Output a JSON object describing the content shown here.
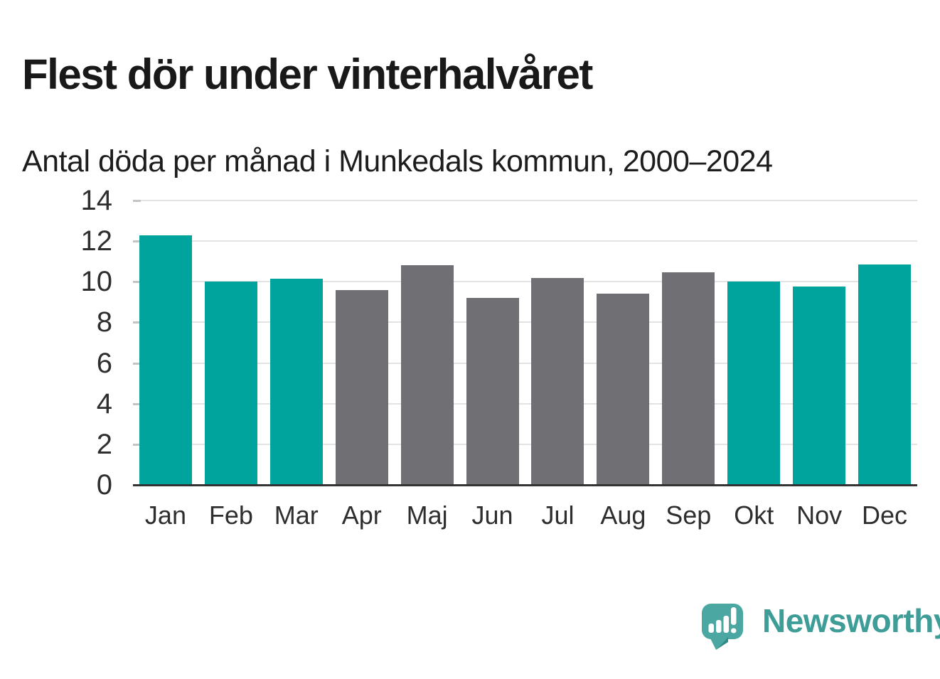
{
  "header": {
    "title": "Flest dör under vinterhalvåret",
    "subtitle": "Antal döda per månad i Munkedals kommun, 2000–2024"
  },
  "chart_data": {
    "type": "bar",
    "title": "Flest dör under vinterhalvåret",
    "subtitle": "Antal döda per månad i Munkedals kommun, 2000–2024",
    "categories": [
      "Jan",
      "Feb",
      "Mar",
      "Apr",
      "Maj",
      "Jun",
      "Jul",
      "Aug",
      "Sep",
      "Okt",
      "Nov",
      "Dec"
    ],
    "values": [
      12.3,
      10.0,
      10.15,
      9.6,
      10.8,
      9.2,
      10.2,
      9.4,
      10.45,
      10.0,
      9.75,
      10.85
    ],
    "bar_colors": [
      "#00a49c",
      "#00a49c",
      "#00a49c",
      "#6f6f74",
      "#6f6f74",
      "#6f6f74",
      "#6f6f74",
      "#6f6f74",
      "#6f6f74",
      "#00a49c",
      "#00a49c",
      "#00a49c"
    ],
    "xlabel": "",
    "ylabel": "",
    "ylim": [
      0,
      14
    ],
    "yticks": [
      0,
      2,
      4,
      6,
      8,
      10,
      12,
      14
    ],
    "grid": true,
    "legend_position": "none"
  },
  "colors": {
    "highlight_bar": "#00a49c",
    "neutral_bar": "#6f6f74",
    "gridline": "#e3e3e3",
    "axis_tick": "#c4c4c4",
    "baseline": "#333333",
    "title_text": "#191919",
    "axis_text": "#2e2e2e",
    "logo_text": "#3f9d98",
    "logo_bubble": "#4aa7a1",
    "logo_bubble_shade": "#2f8c87"
  },
  "footer": {
    "brand": "Newsworthy"
  }
}
